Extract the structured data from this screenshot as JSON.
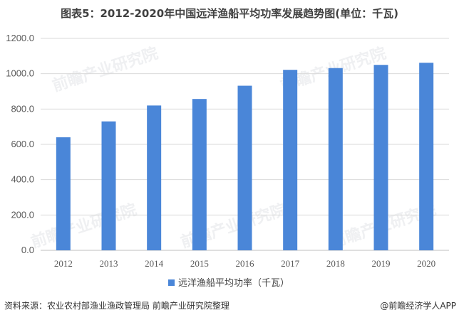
{
  "title": "图表5：2012-2020年中国远洋渔船平均功率发展趋势图(单位：千瓦)",
  "footer": {
    "source": "资料来源：农业农村部渔业渔政管理局 前瞻产业研究院整理",
    "brand": "@前瞻经济学人APP"
  },
  "watermark": "前瞻产业研究院",
  "colors": {
    "bar": "#4a86d8",
    "grid": "#d9d9d9",
    "axis": "#bfbfbf"
  },
  "chart_data": {
    "type": "bar",
    "title": "图表5：2012-2020年中国远洋渔船平均功率发展趋势图(单位：千瓦)",
    "categories": [
      "2012",
      "2013",
      "2014",
      "2015",
      "2016",
      "2017",
      "2018",
      "2019",
      "2020"
    ],
    "series": [
      {
        "name": "远洋渔船平均功率（千瓦）",
        "values": [
          640,
          730,
          820,
          857,
          932,
          1022,
          1032,
          1050,
          1062
        ]
      }
    ],
    "ylim": [
      0,
      1200
    ],
    "yticks": [
      "0.0",
      "200.0",
      "400.0",
      "600.0",
      "800.0",
      "1000.0",
      "1200.0"
    ],
    "grid": true,
    "legend": "bottom-center"
  }
}
